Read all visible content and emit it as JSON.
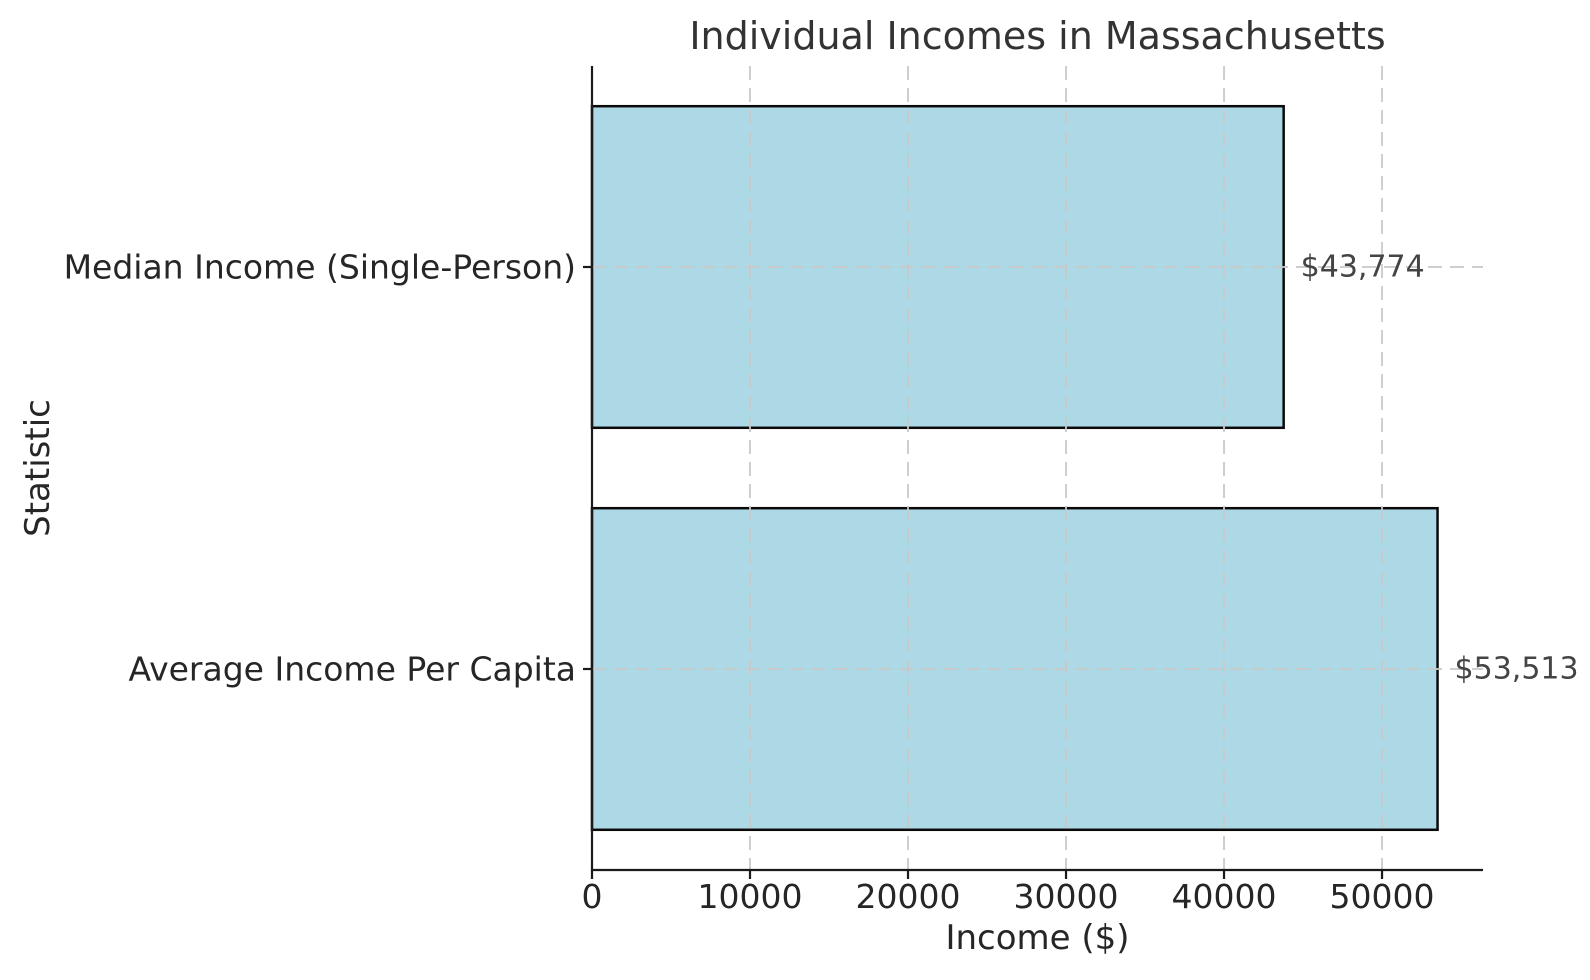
{
  "chart_data": {
    "type": "bar",
    "orientation": "horizontal",
    "title": "Individual Incomes in Massachusetts",
    "xlabel": "Income ($)",
    "ylabel": "Statistic",
    "categories": [
      "Median Income (Single-Person)",
      "Average Income Per Capita"
    ],
    "values": [
      43774,
      53513
    ],
    "value_labels": [
      "$43,774",
      "$53,513"
    ],
    "xticks": [
      0,
      10000,
      20000,
      30000,
      40000,
      50000
    ],
    "xtick_labels": [
      "0",
      "10000",
      "20000",
      "30000",
      "40000",
      "50000"
    ],
    "xlim": [
      0,
      56390
    ],
    "bar_height_fraction": 0.8,
    "grid": {
      "style": "dashed",
      "axis": "both",
      "above_bars": true
    },
    "legend_position": "none",
    "colors": {
      "bar_fill": "#add8e6",
      "bar_edge": "#0a0a0a",
      "grid": "#c9c9c9",
      "spine": "#1a1a1a",
      "tick_text": "#262626",
      "title_text": "#333333",
      "value_text": "#444444",
      "background": "#ffffff"
    }
  }
}
